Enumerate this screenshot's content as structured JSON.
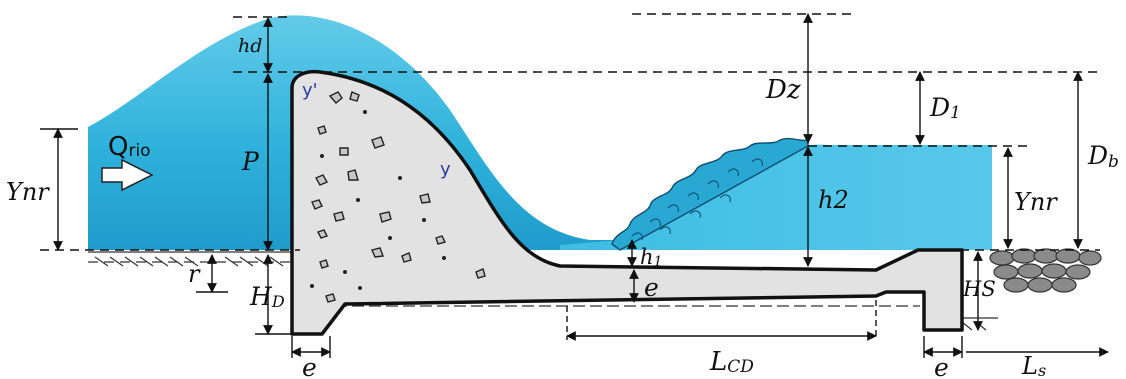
{
  "diagram": {
    "labels": {
      "hd": "hd",
      "dz": "Dz",
      "d1": "D",
      "d1_sub": "1",
      "db": "D",
      "db_sub": "b",
      "q_main": "Q",
      "q_sub": "rio",
      "ynr_left": "Ynr",
      "ynr_right": "Ynr",
      "p": "P",
      "r": "r",
      "hd_base": "H",
      "hd_base_sub": "D",
      "h2": "h2",
      "h1": "h",
      "h1_sub": "1",
      "e_slab": "e",
      "hs": "HS",
      "e_left": "e",
      "e_right": "e",
      "lcd": "L",
      "lcd_sub": "CD",
      "ls": "L",
      "ls_sub": "s",
      "y_prime": "y'",
      "y": "y"
    },
    "colors": {
      "water_light": "#6fd2ec",
      "water_mid": "#2fb4dc",
      "water_dark": "#1a8fc0",
      "concrete": "#e2e2e2",
      "outline": "#111111",
      "rock": "#8a8a8a",
      "rock_dark": "#555555"
    }
  }
}
